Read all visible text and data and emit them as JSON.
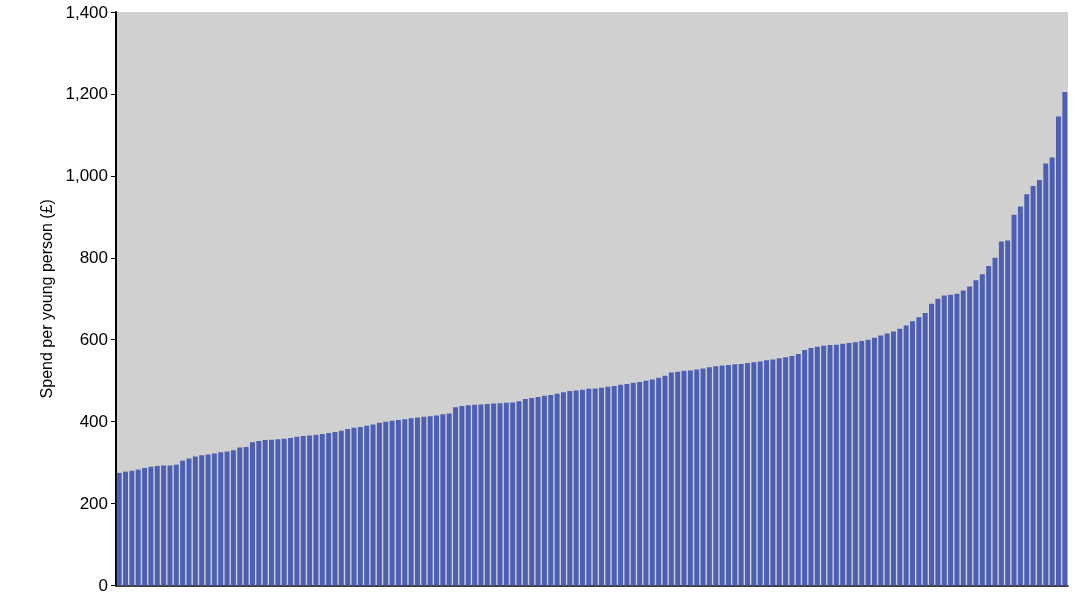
{
  "chart_data": {
    "type": "bar",
    "ylabel": "Spend per young person (£)",
    "categories": [
      null,
      null,
      null,
      null,
      null,
      null,
      null,
      null,
      null,
      null,
      null,
      null,
      null,
      null,
      null,
      null,
      null,
      null,
      null,
      null,
      null,
      null,
      null,
      null,
      null,
      null,
      null,
      null,
      null,
      null,
      null,
      null,
      null,
      null,
      null,
      null,
      null,
      null,
      null,
      null,
      null,
      null,
      null,
      null,
      null,
      null,
      null,
      null,
      null,
      null,
      null,
      null,
      null,
      null,
      null,
      null,
      null,
      null,
      null,
      null,
      null,
      null,
      null,
      null,
      null,
      null,
      null,
      null,
      null,
      null,
      null,
      null,
      null,
      null,
      null,
      null,
      null,
      null,
      null,
      null,
      null,
      null,
      null,
      null,
      null,
      null,
      null,
      null,
      null,
      null,
      null,
      null,
      null,
      null,
      null,
      null,
      null,
      null,
      null,
      null,
      null,
      null,
      null,
      null,
      null,
      null,
      null,
      null,
      null,
      null,
      null,
      null,
      null,
      null,
      null,
      null,
      null,
      null,
      null,
      null,
      null,
      null,
      null,
      null,
      null,
      null,
      null,
      null,
      null,
      null,
      null,
      null,
      null,
      null,
      null,
      null,
      null,
      null,
      null,
      null,
      null,
      null,
      null,
      null,
      null,
      null,
      null,
      null,
      null,
      null
    ],
    "values": [
      275,
      278,
      280,
      283,
      287,
      290,
      292,
      293,
      293,
      295,
      305,
      310,
      315,
      318,
      320,
      322,
      325,
      327,
      330,
      337,
      338,
      350,
      353,
      355,
      356,
      357,
      358,
      360,
      363,
      365,
      366,
      368,
      370,
      372,
      375,
      378,
      382,
      385,
      387,
      390,
      393,
      397,
      400,
      402,
      404,
      406,
      408,
      410,
      412,
      413,
      415,
      418,
      420,
      435,
      438,
      440,
      441,
      442,
      443,
      444,
      445,
      446,
      447,
      450,
      455,
      458,
      460,
      463,
      465,
      468,
      472,
      475,
      476,
      478,
      480,
      481,
      483,
      485,
      487,
      490,
      492,
      495,
      497,
      500,
      503,
      507,
      512,
      520,
      522,
      524,
      525,
      527,
      530,
      533,
      535,
      537,
      538,
      540,
      541,
      543,
      545,
      547,
      550,
      552,
      555,
      557,
      560,
      565,
      575,
      580,
      583,
      585,
      587,
      588,
      590,
      592,
      594,
      597,
      600,
      605,
      610,
      615,
      620,
      627,
      635,
      645,
      655,
      665,
      688,
      700,
      708,
      710,
      712,
      720,
      730,
      745,
      760,
      780,
      800,
      840,
      842,
      905,
      925,
      955,
      975,
      990,
      1030,
      1045,
      1145,
      1205
    ],
    "color": "#4d5fb5",
    "ylim": [
      0,
      1400
    ],
    "yticks": [
      0,
      200,
      400,
      600,
      800,
      {
        "value": 1000,
        "label": "1,000"
      },
      {
        "value": 1200,
        "label": "1,200"
      },
      {
        "value": 1400,
        "label": "1,400"
      }
    ],
    "tick_labels": "y",
    "grid": false
  }
}
